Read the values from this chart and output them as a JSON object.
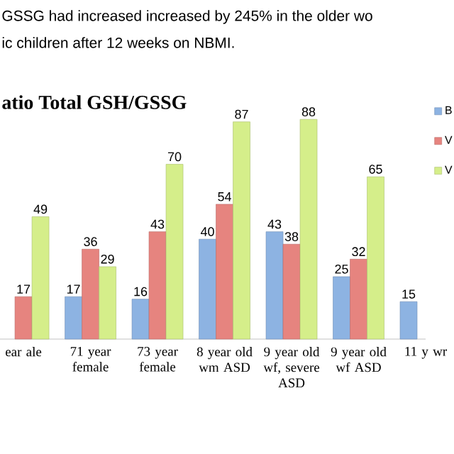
{
  "chart_data": {
    "type": "bar",
    "title": "atio Total GSH/GSSG",
    "annotations": [
      "GSSG had increased increased by 245% in the older wo",
      "ic children after 12 weeks on NBMI."
    ],
    "categories": [
      "ear ale",
      "71 year female",
      "73 year female",
      "8 year old wm ASD",
      "9 year old wf, severe ASD",
      "9 year old wf ASD",
      "11 y wr"
    ],
    "series": [
      {
        "name": "B",
        "color": "#8db3e2",
        "values": [
          null,
          17,
          16,
          40,
          43,
          25,
          15
        ]
      },
      {
        "name": "V",
        "color": "#e6847f",
        "values": [
          17,
          36,
          43,
          54,
          38,
          32,
          null
        ]
      },
      {
        "name": "V",
        "color": "#d5ee8a",
        "values": [
          49,
          29,
          70,
          87,
          88,
          65,
          null
        ]
      }
    ],
    "data_labels": true,
    "legend": "right"
  }
}
